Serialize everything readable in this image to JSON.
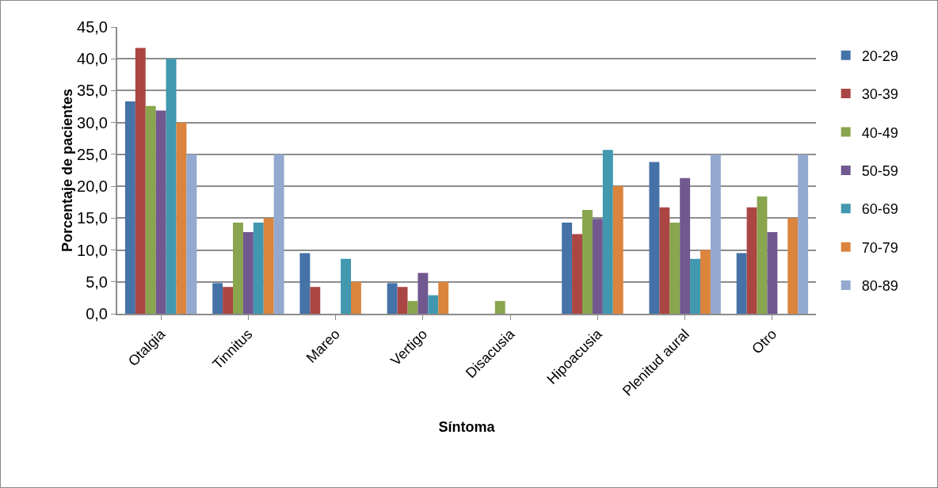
{
  "chart_data": {
    "type": "bar",
    "xlabel": "Síntoma",
    "ylabel": "Porcentaje de pacientes",
    "categories": [
      "Otalgia",
      "Tinnitus",
      "Mareo",
      "Vertigo",
      "Disacusia",
      "Hipoacusia",
      "Plenitud aural",
      "Otro"
    ],
    "series": [
      {
        "name": "20-29",
        "color": "#4572a7",
        "values": [
          33.3,
          4.8,
          9.5,
          4.8,
          0,
          14.3,
          23.8,
          9.5
        ]
      },
      {
        "name": "30-39",
        "color": "#aa4643",
        "values": [
          41.7,
          4.2,
          4.2,
          4.2,
          0,
          12.5,
          16.7,
          16.7
        ]
      },
      {
        "name": "40-49",
        "color": "#89a54e",
        "values": [
          32.6,
          14.3,
          0,
          2.0,
          2.0,
          16.3,
          14.3,
          18.4
        ]
      },
      {
        "name": "50-59",
        "color": "#71588f",
        "values": [
          31.9,
          12.8,
          0,
          6.4,
          0,
          14.9,
          21.3,
          12.8
        ]
      },
      {
        "name": "60-69",
        "color": "#4198af",
        "values": [
          40.0,
          14.3,
          8.6,
          2.9,
          0,
          25.7,
          8.6,
          0
        ]
      },
      {
        "name": "70-79",
        "color": "#db843d",
        "values": [
          30.0,
          15.0,
          5.0,
          5.0,
          0,
          20.0,
          10.0,
          15.0
        ]
      },
      {
        "name": "80-89",
        "color": "#93a9cf",
        "values": [
          25.0,
          25.0,
          0,
          0,
          0,
          0,
          25.0,
          25.0
        ]
      }
    ],
    "ylim": [
      0,
      45
    ],
    "yticks": [
      {
        "value": 0,
        "label": "0,0"
      },
      {
        "value": 5,
        "label": "5,0"
      },
      {
        "value": 10,
        "label": "10,0"
      },
      {
        "value": 15,
        "label": "15,0"
      },
      {
        "value": 20,
        "label": "20,0"
      },
      {
        "value": 25,
        "label": "25,0"
      },
      {
        "value": 30,
        "label": "30,0"
      },
      {
        "value": 35,
        "label": "35,0"
      },
      {
        "value": 40,
        "label": "40,0"
      },
      {
        "value": 45,
        "label": "45,0"
      }
    ],
    "grid": "y",
    "legend": "right"
  }
}
